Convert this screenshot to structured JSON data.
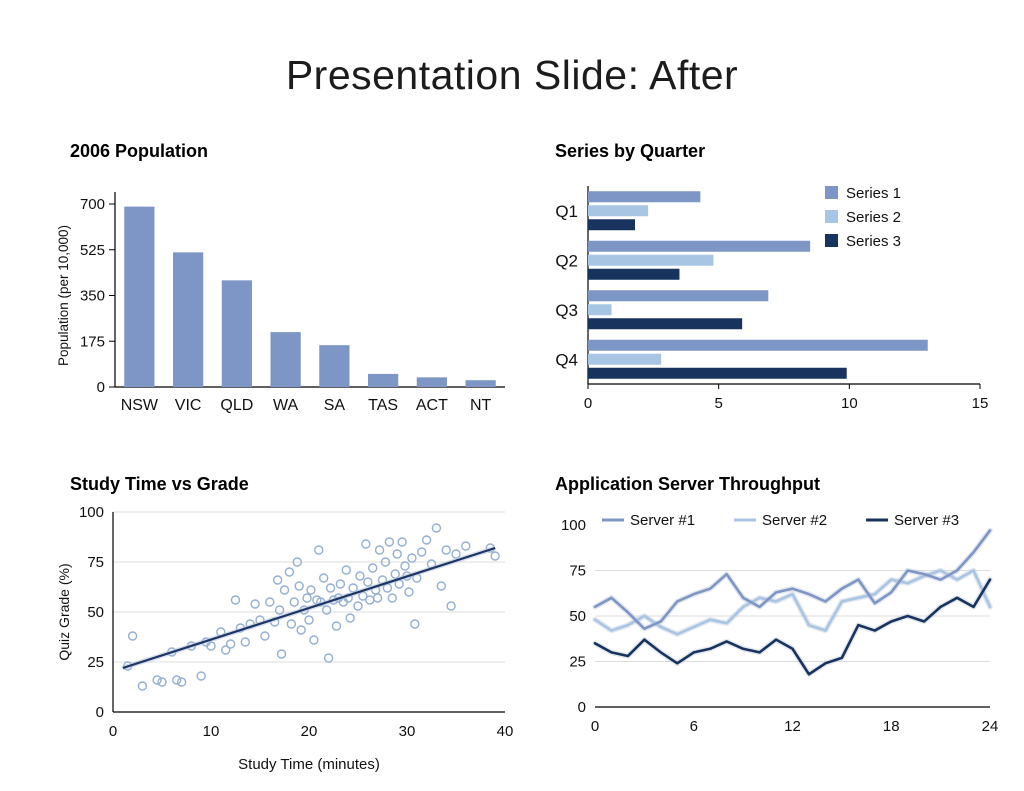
{
  "slide": {
    "title": "Presentation Slide: After"
  },
  "colors": {
    "series1": "#7D96C5",
    "series2": "#A9C5E4",
    "series3": "#17335E",
    "scatter": "#93AFD2",
    "trend": "#1B3566",
    "halo": "#B9C4D6",
    "grid": "#DCDCDC",
    "axis": "#000000"
  },
  "chart_data": [
    {
      "id": "population",
      "type": "bar",
      "title": "2006 Population",
      "xlabel": "",
      "ylabel": "Population (per 10,000)",
      "categories": [
        "NSW",
        "VIC",
        "QLD",
        "WA",
        "SA",
        "TAS",
        "ACT",
        "NT"
      ],
      "values": [
        690,
        515,
        408,
        210,
        160,
        50,
        37,
        26
      ],
      "yticks": [
        0,
        175,
        350,
        525,
        700
      ],
      "ylim": [
        0,
        700
      ],
      "grid": false
    },
    {
      "id": "quarters",
      "type": "bar-horizontal",
      "title": "Series by Quarter",
      "categories": [
        "Q1",
        "Q2",
        "Q3",
        "Q4"
      ],
      "series": [
        {
          "name": "Series 1",
          "values": [
            4.3,
            8.5,
            6.9,
            13.0
          ]
        },
        {
          "name": "Series 2",
          "values": [
            2.3,
            4.8,
            0.9,
            2.8
          ]
        },
        {
          "name": "Series 3",
          "values": [
            1.8,
            3.5,
            5.9,
            9.9
          ]
        }
      ],
      "xticks": [
        0,
        5,
        10,
        15
      ],
      "xlim": [
        0,
        15
      ],
      "legend_position": "top-right",
      "grid": false
    },
    {
      "id": "scatter",
      "type": "scatter",
      "title": "Study Time vs Grade",
      "xlabel": "Study Time (minutes)",
      "ylabel": "Quiz Grade (%)",
      "xlim": [
        0,
        40
      ],
      "ylim": [
        0,
        100
      ],
      "xticks": [
        0,
        10,
        20,
        30,
        40
      ],
      "yticks": [
        0,
        25,
        50,
        75,
        100
      ],
      "grid": true,
      "trend": {
        "x1": 1,
        "y1": 22,
        "x2": 39,
        "y2": 82
      },
      "points": [
        [
          1.5,
          23
        ],
        [
          2,
          38
        ],
        [
          3,
          13
        ],
        [
          4.5,
          16
        ],
        [
          5,
          15
        ],
        [
          6,
          30
        ],
        [
          6.5,
          16
        ],
        [
          7,
          15
        ],
        [
          8,
          33
        ],
        [
          9,
          18
        ],
        [
          9.5,
          35
        ],
        [
          10,
          33
        ],
        [
          11,
          40
        ],
        [
          11.5,
          31
        ],
        [
          12,
          34
        ],
        [
          12.5,
          56
        ],
        [
          13,
          42
        ],
        [
          13.5,
          35
        ],
        [
          14,
          44
        ],
        [
          14.5,
          54
        ],
        [
          15,
          46
        ],
        [
          15.5,
          38
        ],
        [
          16,
          55
        ],
        [
          16.5,
          45
        ],
        [
          16.8,
          66
        ],
        [
          17,
          51
        ],
        [
          17.2,
          29
        ],
        [
          17.5,
          61
        ],
        [
          18,
          70
        ],
        [
          18.2,
          44
        ],
        [
          18.5,
          55
        ],
        [
          18.8,
          75
        ],
        [
          19,
          63
        ],
        [
          19.2,
          41
        ],
        [
          19.5,
          51
        ],
        [
          19.8,
          57
        ],
        [
          20,
          46
        ],
        [
          20.2,
          61
        ],
        [
          20.5,
          36
        ],
        [
          20.8,
          56
        ],
        [
          21,
          81
        ],
        [
          21.2,
          55
        ],
        [
          21.5,
          67
        ],
        [
          21.8,
          51
        ],
        [
          22,
          27
        ],
        [
          22.2,
          62
        ],
        [
          22.5,
          56
        ],
        [
          22.8,
          43
        ],
        [
          23,
          57
        ],
        [
          23.2,
          64
        ],
        [
          23.5,
          55
        ],
        [
          23.8,
          71
        ],
        [
          24,
          57
        ],
        [
          24.2,
          47
        ],
        [
          24.5,
          62
        ],
        [
          25,
          53
        ],
        [
          25.2,
          68
        ],
        [
          25.5,
          58
        ],
        [
          25.8,
          84
        ],
        [
          26,
          65
        ],
        [
          26.2,
          56
        ],
        [
          26.5,
          72
        ],
        [
          26.8,
          61
        ],
        [
          27,
          57
        ],
        [
          27.2,
          81
        ],
        [
          27.5,
          66
        ],
        [
          27.8,
          75
        ],
        [
          28,
          62
        ],
        [
          28.2,
          85
        ],
        [
          28.5,
          57
        ],
        [
          28.8,
          69
        ],
        [
          29,
          79
        ],
        [
          29.2,
          64
        ],
        [
          29.5,
          85
        ],
        [
          29.8,
          73
        ],
        [
          30,
          68
        ],
        [
          30.2,
          60
        ],
        [
          30.5,
          77
        ],
        [
          30.8,
          44
        ],
        [
          31,
          67
        ],
        [
          31.5,
          80
        ],
        [
          32,
          86
        ],
        [
          32.5,
          74
        ],
        [
          33,
          92
        ],
        [
          33.5,
          63
        ],
        [
          34,
          81
        ],
        [
          34.5,
          53
        ],
        [
          35,
          79
        ],
        [
          36,
          83
        ],
        [
          38.5,
          82
        ],
        [
          39,
          78
        ]
      ]
    },
    {
      "id": "throughput",
      "type": "line",
      "title": "Application Server Throughput",
      "xlabel": "",
      "ylabel": "",
      "xlim": [
        0,
        24
      ],
      "ylim": [
        0,
        100
      ],
      "xticks": [
        0,
        6,
        12,
        18,
        24
      ],
      "yticks": [
        0,
        25,
        50,
        75,
        100
      ],
      "grid": true,
      "legend_position": "top",
      "series": [
        {
          "name": "Server #1",
          "values": [
            55,
            60,
            52,
            43,
            47,
            58,
            62,
            65,
            73,
            60,
            55,
            63,
            65,
            62,
            58,
            65,
            70,
            57,
            63,
            75,
            73,
            70,
            75,
            85,
            97
          ]
        },
        {
          "name": "Server #2",
          "values": [
            48,
            42,
            45,
            50,
            44,
            40,
            44,
            48,
            46,
            55,
            60,
            58,
            62,
            45,
            42,
            58,
            60,
            62,
            70,
            68,
            72,
            75,
            70,
            75,
            55
          ]
        },
        {
          "name": "Server #3",
          "values": [
            35,
            30,
            28,
            37,
            30,
            24,
            30,
            32,
            36,
            32,
            30,
            37,
            32,
            18,
            24,
            27,
            45,
            42,
            47,
            50,
            47,
            55,
            60,
            55,
            70
          ]
        }
      ]
    }
  ]
}
